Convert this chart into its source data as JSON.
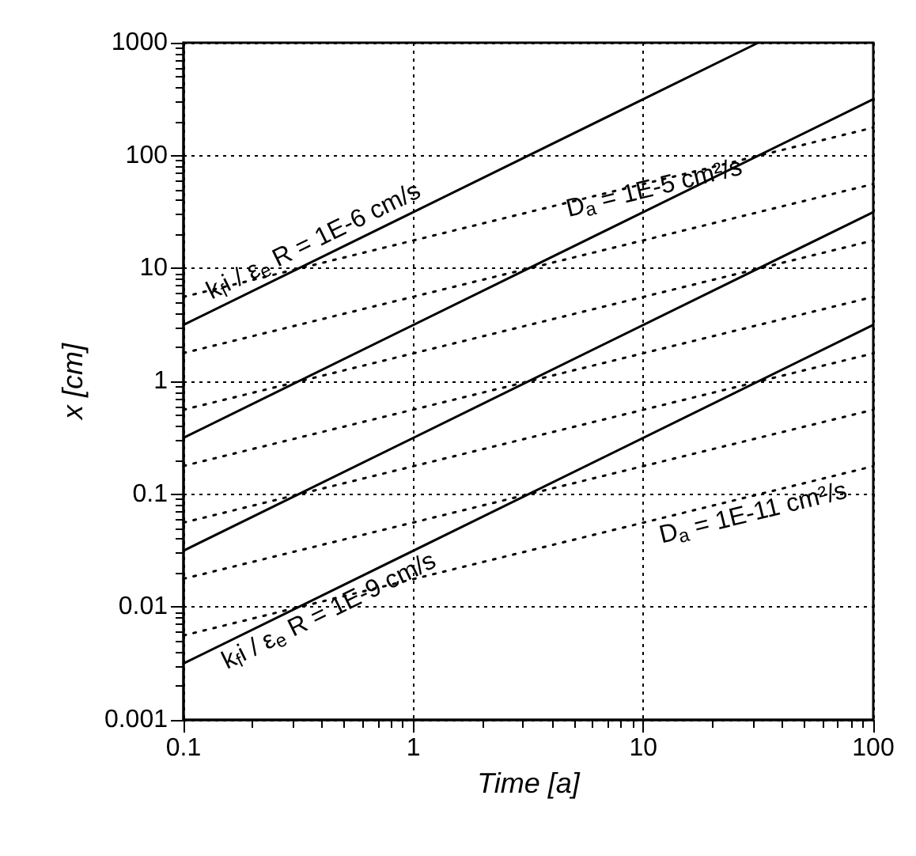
{
  "chart_data": {
    "type": "line",
    "xlabel": "Time [a]",
    "ylabel": "x [cm]",
    "log": "xy",
    "grid": true,
    "marker": "none",
    "xlim": [
      0.1,
      100
    ],
    "xticks": [
      0.1,
      1,
      10,
      100
    ],
    "ylim": [
      0.001,
      1000
    ],
    "yticks": [
      0.001,
      0.01,
      0.1,
      1,
      10,
      100,
      1000
    ],
    "series": [
      {
        "name": "k$_{f}$i / ε$_{e}$ R = 1E-6 cm/s",
        "color": "#000000",
        "line_style": "solid",
        "x": [
          0.1,
          31.6
        ],
        "values": [
          3.16,
          1000
        ]
      },
      {
        "color": "#000000",
        "line_style": "solid",
        "x": [
          0.1,
          100
        ],
        "values": [
          0.316,
          316
        ]
      },
      {
        "color": "#000000",
        "line_style": "solid",
        "x": [
          0.1,
          100
        ],
        "values": [
          0.0316,
          31.6
        ]
      },
      {
        "name": "k$_{f}$i / ε$_{e}$ R = 1E-9 cm/s",
        "color": "#000000",
        "line_style": "solid",
        "x": [
          0.1,
          100
        ],
        "values": [
          0.00316,
          3.16
        ]
      },
      {
        "name": "D$_{a}$ = 1E-5 cm²/s",
        "color": "#000000",
        "line_style": "dotted",
        "x": [
          0.1,
          100
        ],
        "values": [
          5.6,
          177
        ]
      },
      {
        "color": "#000000",
        "line_style": "dotted",
        "x": [
          0.1,
          100
        ],
        "values": [
          1.78,
          56
        ]
      },
      {
        "color": "#000000",
        "line_style": "dotted",
        "x": [
          0.1,
          100
        ],
        "values": [
          0.56,
          17.7
        ]
      },
      {
        "color": "#000000",
        "line_style": "dotted",
        "x": [
          0.1,
          100
        ],
        "values": [
          0.178,
          5.6
        ]
      },
      {
        "color": "#000000",
        "line_style": "dotted",
        "x": [
          0.1,
          100
        ],
        "values": [
          0.056,
          1.77
        ]
      },
      {
        "color": "#000000",
        "line_style": "dotted",
        "x": [
          0.1,
          100
        ],
        "values": [
          0.0178,
          0.56
        ]
      },
      {
        "name": "D$_{a}$ = 1E-11 cm²/s",
        "color": "#000000",
        "line_style": "dotted",
        "x": [
          0.1,
          100
        ],
        "values": [
          0.0056,
          0.177
        ]
      }
    ]
  }
}
